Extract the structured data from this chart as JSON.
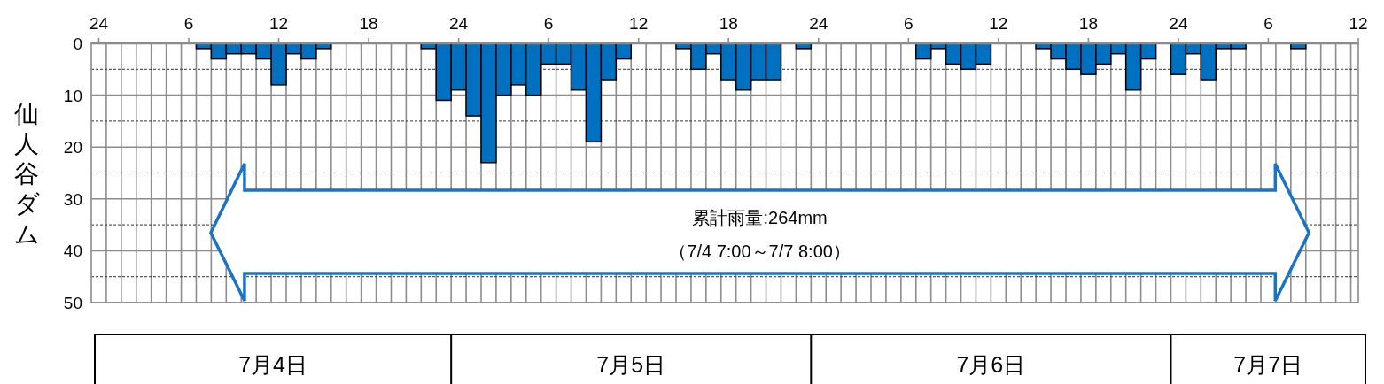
{
  "chart_data": {
    "type": "bar",
    "ylabel": "仙人谷ダム",
    "x": [
      "--07-04T07:00",
      "--07-04T08:00",
      "--07-04T09:00",
      "--07-04T10:00",
      "--07-04T11:00",
      "--07-04T12:00",
      "--07-04T13:00",
      "--07-04T14:00",
      "--07-04T15:00",
      "--07-04T22:00",
      "--07-04T23:00",
      "--07-05T00:00",
      "--07-05T01:00",
      "--07-05T02:00",
      "--07-05T03:00",
      "--07-05T04:00",
      "--07-05T05:00",
      "--07-05T06:00",
      "--07-05T07:00",
      "--07-05T08:00",
      "--07-05T09:00",
      "--07-05T10:00",
      "--07-05T11:00",
      "--07-05T15:00",
      "--07-05T16:00",
      "--07-05T17:00",
      "--07-05T18:00",
      "--07-05T19:00",
      "--07-05T20:00",
      "--07-05T21:00",
      "--07-05T23:00",
      "--07-06T07:00",
      "--07-06T08:00",
      "--07-06T09:00",
      "--07-06T10:00",
      "--07-06T11:00",
      "--07-06T15:00",
      "--07-06T16:00",
      "--07-06T17:00",
      "--07-06T18:00",
      "--07-06T19:00",
      "--07-06T20:00",
      "--07-06T21:00",
      "--07-06T22:00",
      "--07-07T00:00",
      "--07-07T01:00",
      "--07-07T02:00",
      "--07-07T03:00",
      "--07-07T04:00",
      "--07-07T08:00"
    ],
    "values": [
      1,
      3,
      2,
      2,
      3,
      8,
      2,
      3,
      1,
      1,
      11,
      9,
      14,
      23,
      10,
      8,
      10,
      4,
      4,
      9,
      19,
      7,
      3,
      1,
      5,
      2,
      7,
      9,
      7,
      7,
      1,
      3,
      1,
      4,
      5,
      4,
      1,
      3,
      5,
      6,
      4,
      2,
      9,
      3,
      6,
      2,
      7,
      1,
      1,
      1
    ],
    "color": "#0070c0",
    "xlim": [
      "--07-03T23:30",
      "--07-07T12:00"
    ],
    "xticks": [
      {
        "value": "--07-04T00:00",
        "label": "24"
      },
      {
        "value": "--07-04T06:00",
        "label": "6"
      },
      {
        "value": "--07-04T12:00",
        "label": "12"
      },
      {
        "value": "--07-04T18:00",
        "label": "18"
      },
      {
        "value": "--07-05T00:00",
        "label": "24"
      },
      {
        "value": "--07-05T06:00",
        "label": "6"
      },
      {
        "value": "--07-05T12:00",
        "label": "12"
      },
      {
        "value": "--07-05T18:00",
        "label": "18"
      },
      {
        "value": "--07-06T00:00",
        "label": "24"
      },
      {
        "value": "--07-06T06:00",
        "label": "6"
      },
      {
        "value": "--07-06T12:00",
        "label": "12"
      },
      {
        "value": "--07-06T18:00",
        "label": "18"
      },
      {
        "value": "--07-07T00:00",
        "label": "24"
      },
      {
        "value": "--07-07T06:00",
        "label": "6"
      },
      {
        "value": "--07-07T12:00",
        "label": "12"
      }
    ],
    "ylim": [
      50,
      0
    ],
    "yticks": [
      0,
      10,
      20,
      30,
      40,
      50
    ],
    "grid": true,
    "annotations": [
      "累計雨量:264mm",
      "（7/4  7:00～7/7  8:00）",
      "7月4日",
      "7月5日",
      "7月6日",
      "7月7日"
    ]
  }
}
